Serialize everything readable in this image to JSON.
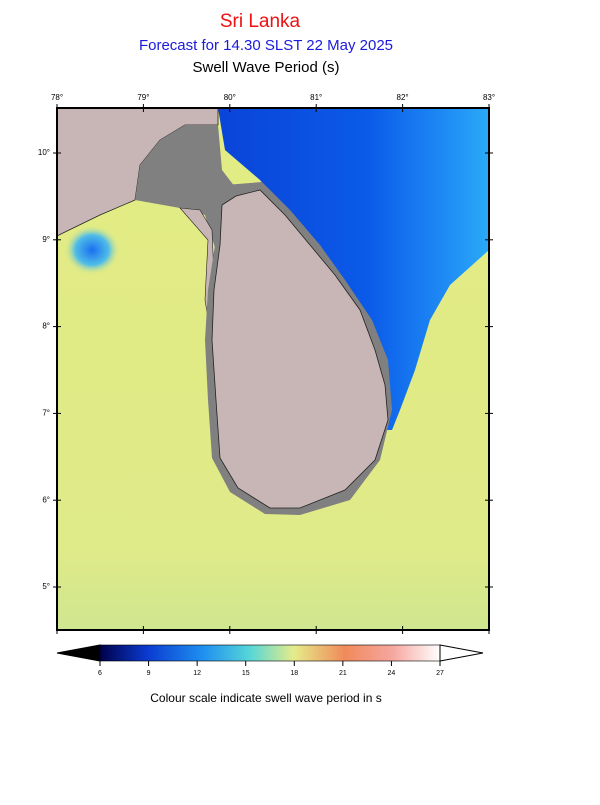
{
  "header": {
    "title": "Sri Lanka",
    "subtitle": "Forecast for  14.30 SLST 22 May 2025",
    "variable": "Swell Wave Period (s)"
  },
  "map": {
    "lon_labels": [
      "78°",
      "79°",
      "80°",
      "81°",
      "82°",
      "83°"
    ],
    "lat_labels": [
      "10°",
      "9°",
      "8°",
      "7°",
      "6°",
      "5°"
    ]
  },
  "colorbar": {
    "labels": [
      "6",
      "9",
      "12",
      "15",
      "18",
      "21",
      "24",
      "27"
    ],
    "caption": "Colour scale indicate swell wave period in s"
  }
}
